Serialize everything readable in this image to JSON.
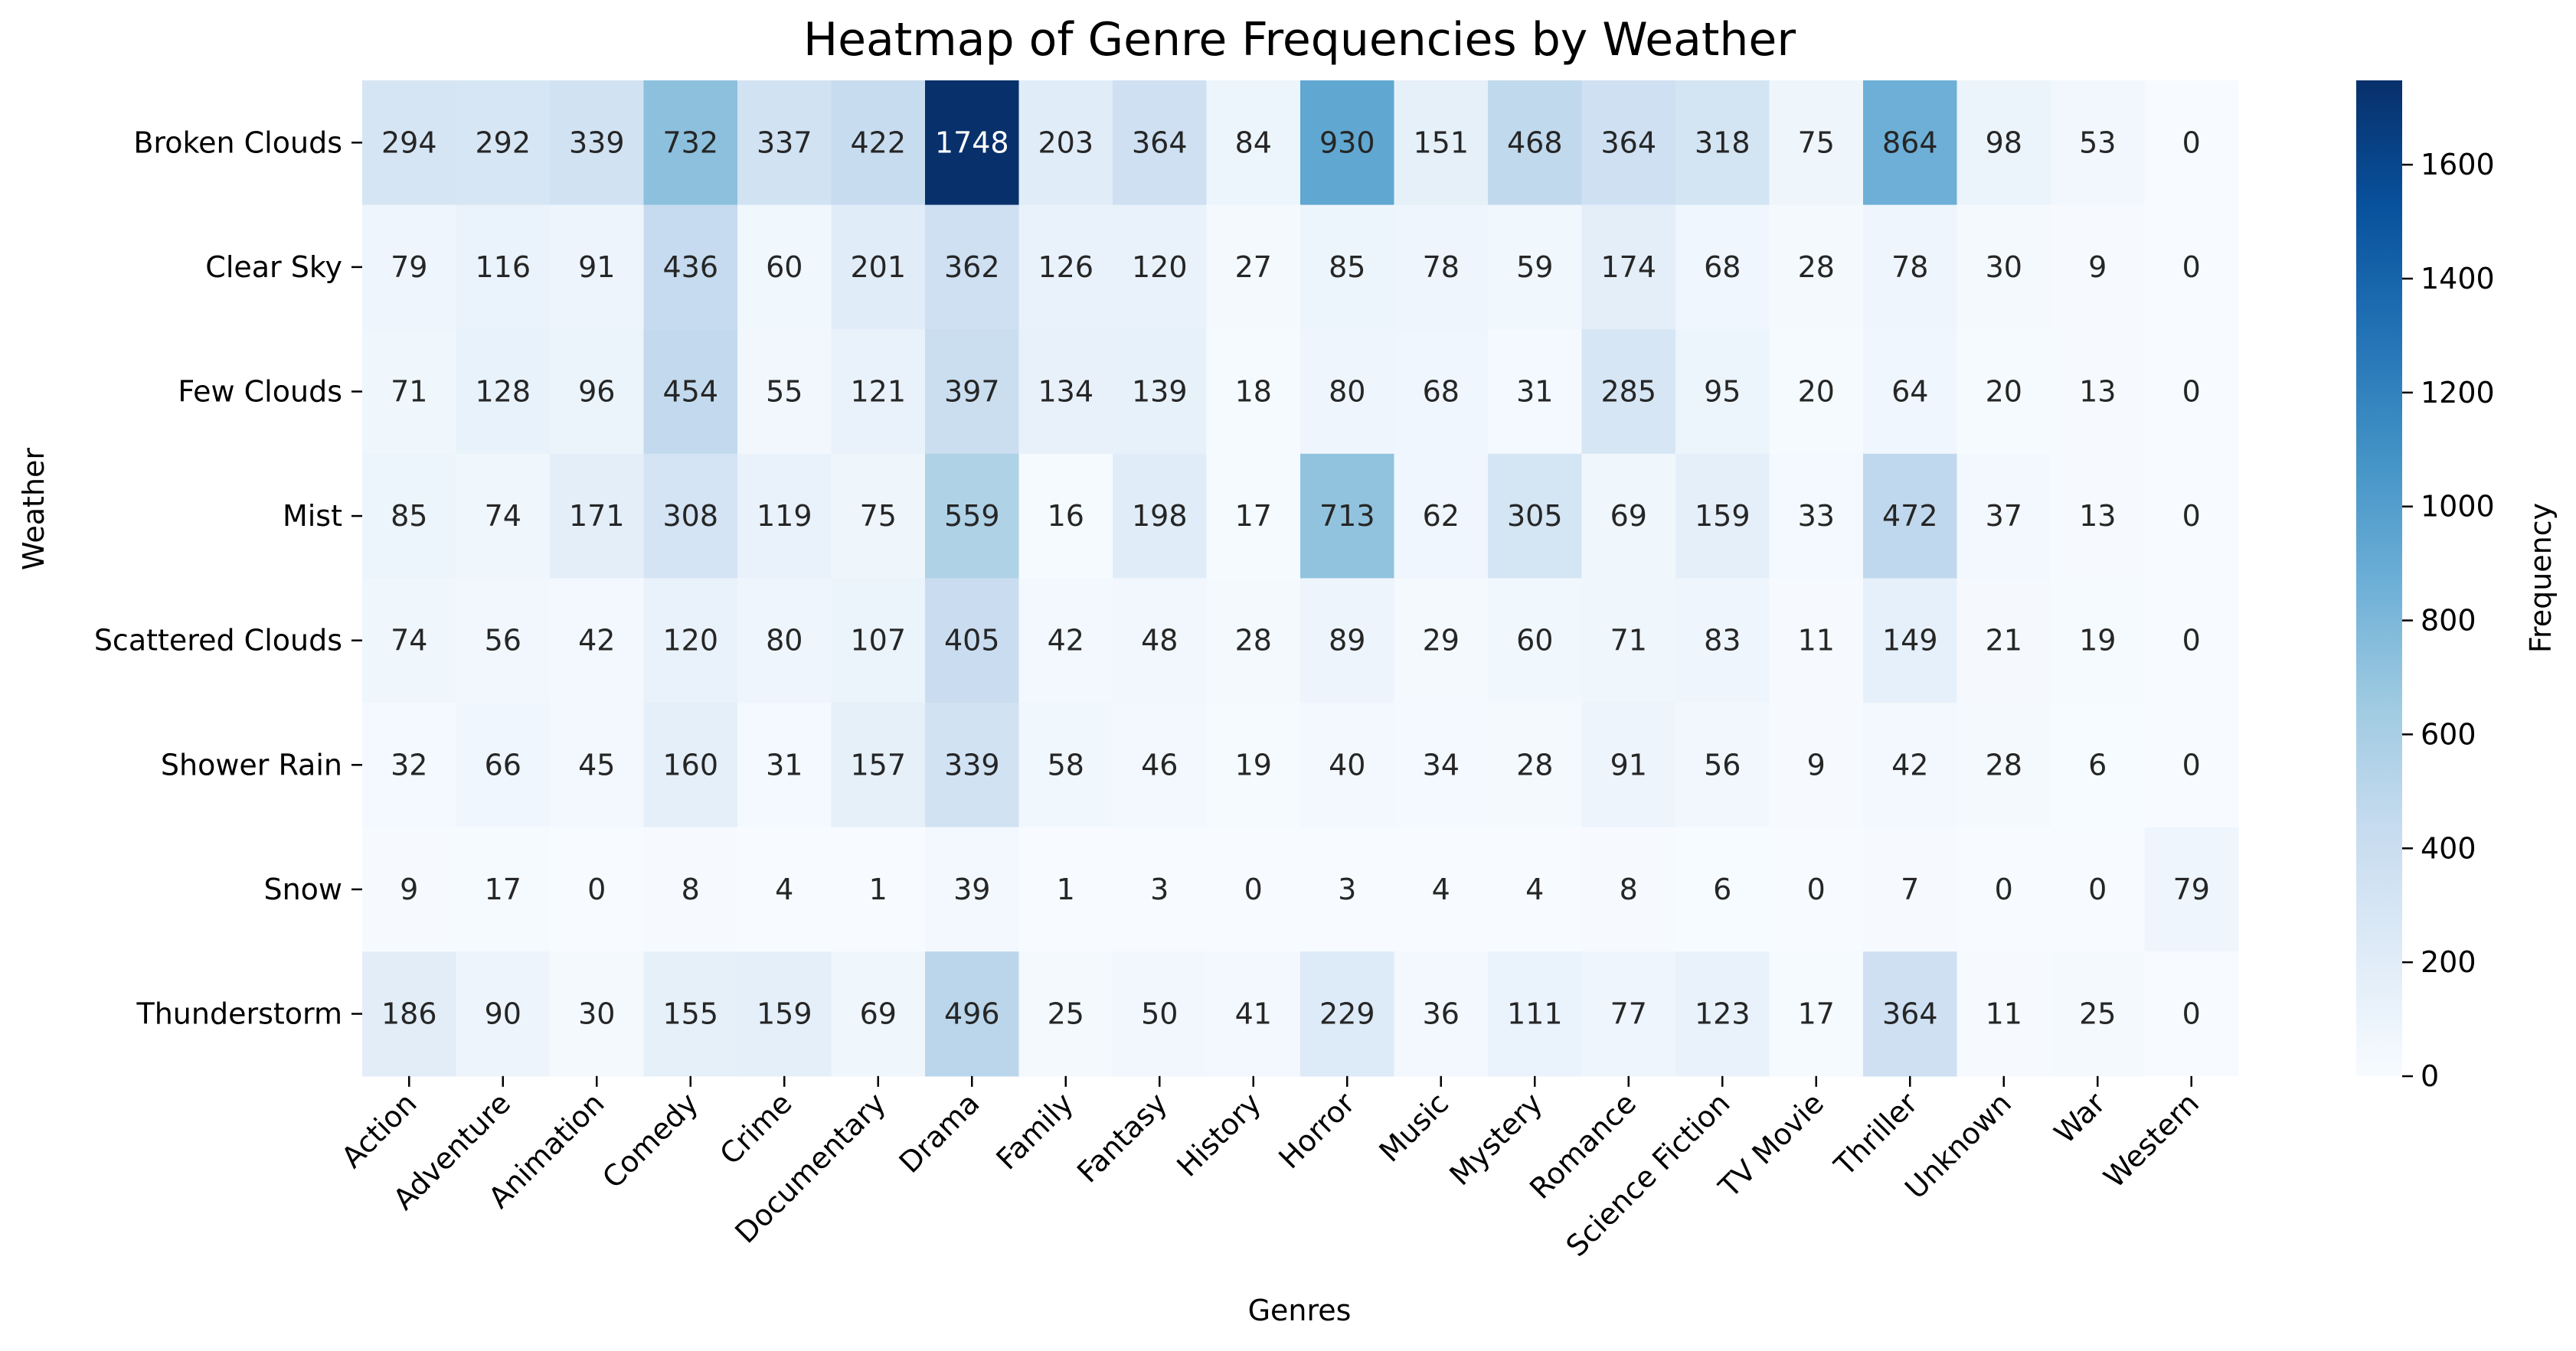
{
  "chart_data": {
    "type": "heatmap",
    "title": "Heatmap of Genre Frequencies by Weather",
    "xlabel": "Genres",
    "ylabel": "Weather",
    "colorbar_label": "Frequency",
    "colormap": "Blues",
    "vmin": 0,
    "vmax": 1748,
    "colorbar_ticks": [
      0,
      200,
      400,
      600,
      800,
      1000,
      1200,
      1400,
      1600
    ],
    "x_categories": [
      "Action",
      "Adventure",
      "Animation",
      "Comedy",
      "Crime",
      "Documentary",
      "Drama",
      "Family",
      "Fantasy",
      "History",
      "Horror",
      "Music",
      "Mystery",
      "Romance",
      "Science Fiction",
      "TV Movie",
      "Thriller",
      "Unknown",
      "War",
      "Western"
    ],
    "y_categories": [
      "Broken Clouds",
      "Clear Sky",
      "Few Clouds",
      "Mist",
      "Scattered Clouds",
      "Shower Rain",
      "Snow",
      "Thunderstorm"
    ],
    "values": [
      [
        294,
        292,
        339,
        732,
        337,
        422,
        1748,
        203,
        364,
        84,
        930,
        151,
        468,
        364,
        318,
        75,
        864,
        98,
        53,
        0
      ],
      [
        79,
        116,
        91,
        436,
        60,
        201,
        362,
        126,
        120,
        27,
        85,
        78,
        59,
        174,
        68,
        28,
        78,
        30,
        9,
        0
      ],
      [
        71,
        128,
        96,
        454,
        55,
        121,
        397,
        134,
        139,
        18,
        80,
        68,
        31,
        285,
        95,
        20,
        64,
        20,
        13,
        0
      ],
      [
        85,
        74,
        171,
        308,
        119,
        75,
        559,
        16,
        198,
        17,
        713,
        62,
        305,
        69,
        159,
        33,
        472,
        37,
        13,
        0
      ],
      [
        74,
        56,
        42,
        120,
        80,
        107,
        405,
        42,
        48,
        28,
        89,
        29,
        60,
        71,
        83,
        11,
        149,
        21,
        19,
        0
      ],
      [
        32,
        66,
        45,
        160,
        31,
        157,
        339,
        58,
        46,
        19,
        40,
        34,
        28,
        91,
        56,
        9,
        42,
        28,
        6,
        0
      ],
      [
        9,
        17,
        0,
        8,
        4,
        1,
        39,
        1,
        3,
        0,
        3,
        4,
        4,
        8,
        6,
        0,
        7,
        0,
        0,
        79
      ],
      [
        186,
        90,
        30,
        155,
        159,
        69,
        496,
        25,
        50,
        41,
        229,
        36,
        111,
        77,
        123,
        17,
        364,
        11,
        25,
        0
      ]
    ]
  }
}
